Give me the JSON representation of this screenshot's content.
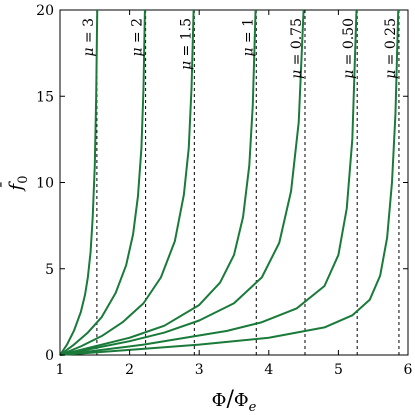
{
  "chart_data": {
    "type": "line",
    "title": "",
    "xlabel_parts": {
      "numerator": "Φ",
      "slash": "/",
      "denominator": "Φ",
      "denominator_subscript": "e"
    },
    "ylabel_parts": {
      "base": "f",
      "accent": "¯",
      "subscript": "0"
    },
    "xlim": [
      1,
      6
    ],
    "ylim": [
      0,
      20
    ],
    "x_ticks": [
      1,
      2,
      3,
      4,
      5,
      6
    ],
    "y_ticks": [
      0,
      5,
      10,
      15,
      20
    ],
    "grid": false,
    "line_color": "#1a7a3a",
    "series": [
      {
        "name": "μ = 3",
        "mu_symbol": "μ",
        "mu_value": "3",
        "asymptote_x": 1.53,
        "x": [
          1.0,
          1.1,
          1.2,
          1.3,
          1.36,
          1.4,
          1.44,
          1.47,
          1.5,
          1.52,
          1.535
        ],
        "y": [
          0.0,
          0.6,
          1.4,
          2.5,
          3.5,
          4.5,
          6.0,
          8.0,
          11.0,
          15.0,
          20.0
        ]
      },
      {
        "name": "μ = 2",
        "mu_symbol": "μ",
        "mu_value": "2",
        "asymptote_x": 2.23,
        "x": [
          1.0,
          1.2,
          1.4,
          1.6,
          1.8,
          1.95,
          2.05,
          2.12,
          2.17,
          2.2,
          2.22
        ],
        "y": [
          0.0,
          0.6,
          1.3,
          2.2,
          3.6,
          5.2,
          7.0,
          9.2,
          12.0,
          15.5,
          20.0
        ]
      },
      {
        "name": "μ = 1.5",
        "mu_symbol": "μ",
        "mu_value": "1.5",
        "asymptote_x": 2.93,
        "x": [
          1.0,
          1.3,
          1.6,
          1.9,
          2.2,
          2.45,
          2.65,
          2.78,
          2.85,
          2.89,
          2.92
        ],
        "y": [
          0.0,
          0.5,
          1.1,
          1.9,
          3.0,
          4.5,
          6.6,
          9.3,
          12.0,
          15.5,
          20.0
        ]
      },
      {
        "name": "μ = 1",
        "mu_symbol": "μ",
        "mu_value": "1",
        "asymptote_x": 3.82,
        "x": [
          1.0,
          1.5,
          2.0,
          2.5,
          3.0,
          3.3,
          3.5,
          3.63,
          3.72,
          3.77,
          3.81
        ],
        "y": [
          0.0,
          0.5,
          1.0,
          1.7,
          2.9,
          4.2,
          5.8,
          8.0,
          11.0,
          14.5,
          20.0
        ]
      },
      {
        "name": "μ = 0.75",
        "mu_symbol": "μ",
        "mu_value": "0.75",
        "asymptote_x": 4.52,
        "x": [
          1.0,
          1.5,
          2.0,
          2.5,
          3.0,
          3.5,
          3.9,
          4.15,
          4.32,
          4.43,
          4.5
        ],
        "y": [
          0.0,
          0.4,
          0.8,
          1.3,
          2.0,
          3.0,
          4.5,
          6.5,
          9.5,
          13.5,
          20.0
        ]
      },
      {
        "name": "μ = 0.50",
        "mu_symbol": "μ",
        "mu_value": "0.50",
        "asymptote_x": 5.27,
        "x": [
          1.0,
          1.6,
          2.2,
          2.8,
          3.4,
          3.9,
          4.4,
          4.8,
          5.0,
          5.12,
          5.2,
          5.26
        ],
        "y": [
          0.0,
          0.3,
          0.6,
          1.0,
          1.4,
          1.9,
          2.7,
          4.0,
          5.8,
          8.5,
          12.5,
          20.0
        ]
      },
      {
        "name": "μ = 0.25",
        "mu_symbol": "μ",
        "mu_value": "0.25",
        "asymptote_x": 5.87,
        "x": [
          1.0,
          2.0,
          3.0,
          4.0,
          4.8,
          5.2,
          5.45,
          5.6,
          5.7,
          5.77,
          5.82,
          5.86
        ],
        "y": [
          0.0,
          0.3,
          0.6,
          1.0,
          1.6,
          2.3,
          3.2,
          4.6,
          6.8,
          10.0,
          14.0,
          20.0
        ]
      }
    ]
  }
}
